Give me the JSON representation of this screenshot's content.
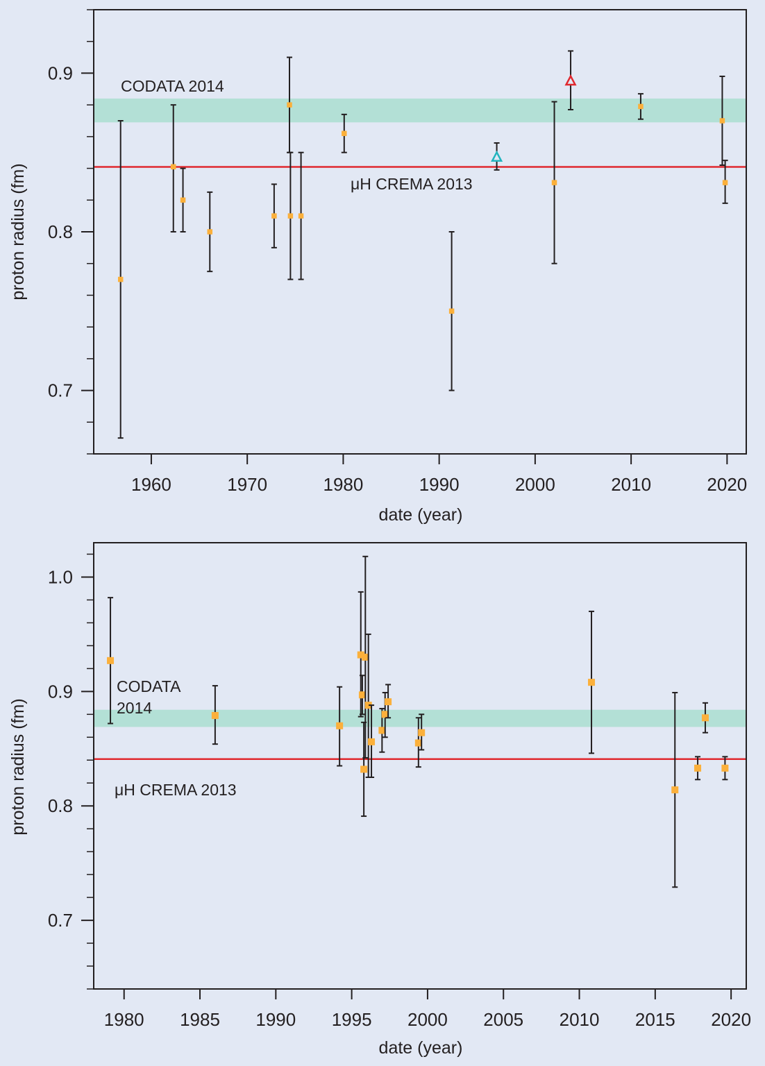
{
  "colors": {
    "background": "#e2e8f4",
    "axis": "#231f20",
    "codata_band": "#b3e0d6",
    "crema_line": "#e0282e",
    "marker": "#fbb03b",
    "errorbar": "#231f20",
    "triangle_cyan": "#22b5bf",
    "triangle_red": "#e0282e"
  },
  "chart_data": [
    {
      "type": "scatter",
      "xlabel": "date (year)",
      "ylabel": "proton radius (fm)",
      "xlim": [
        1954,
        2022
      ],
      "ylim": [
        0.66,
        0.94
      ],
      "x_ticks": [
        1960,
        1970,
        1980,
        1990,
        2000,
        2010,
        2020
      ],
      "x_tick_labels": [
        "1960",
        "1970",
        "1980",
        "1990",
        "2000",
        "2010",
        "2020"
      ],
      "y_ticks": [
        0.7,
        0.8,
        0.9
      ],
      "y_tick_labels": [
        "0.7",
        "0.8",
        "0.9"
      ],
      "y_minor_step": 0.02,
      "grid": false,
      "codata_band": {
        "label": "CODATA 2014",
        "y": [
          0.869,
          0.884
        ]
      },
      "crema_line": {
        "label": "μH CREMA 2013",
        "y": 0.8409
      },
      "series": [
        {
          "marker": "square",
          "points": [
            {
              "x": 1956.8,
              "y": 0.77,
              "ylo": 0.67,
              "yhi": 0.87
            },
            {
              "x": 1962.3,
              "y": 0.841,
              "ylo": 0.8,
              "yhi": 0.88
            },
            {
              "x": 1963.3,
              "y": 0.82,
              "ylo": 0.8,
              "yhi": 0.84
            },
            {
              "x": 1966.1,
              "y": 0.8,
              "ylo": 0.775,
              "yhi": 0.825
            },
            {
              "x": 1972.8,
              "y": 0.81,
              "ylo": 0.79,
              "yhi": 0.83
            },
            {
              "x": 1974.4,
              "y": 0.88,
              "ylo": 0.85,
              "yhi": 0.91
            },
            {
              "x": 1974.5,
              "y": 0.81,
              "ylo": 0.77,
              "yhi": 0.85
            },
            {
              "x": 1975.6,
              "y": 0.81,
              "ylo": 0.77,
              "yhi": 0.85
            },
            {
              "x": 1980.1,
              "y": 0.862,
              "ylo": 0.85,
              "yhi": 0.874
            },
            {
              "x": 1991.3,
              "y": 0.75,
              "ylo": 0.7,
              "yhi": 0.8
            },
            {
              "x": 2002.0,
              "y": 0.831,
              "ylo": 0.78,
              "yhi": 0.882
            },
            {
              "x": 2011.0,
              "y": 0.879,
              "ylo": 0.871,
              "yhi": 0.887
            },
            {
              "x": 2019.5,
              "y": 0.87,
              "ylo": 0.842,
              "yhi": 0.898
            },
            {
              "x": 2019.8,
              "y": 0.831,
              "ylo": 0.818,
              "yhi": 0.845
            }
          ]
        },
        {
          "marker": "triangle-cyan",
          "points": [
            {
              "x": 1996.0,
              "y": 0.847,
              "ylo": 0.839,
              "yhi": 0.856
            }
          ]
        },
        {
          "marker": "triangle-red",
          "points": [
            {
              "x": 2003.7,
              "y": 0.895,
              "ylo": 0.877,
              "yhi": 0.914
            }
          ]
        }
      ]
    },
    {
      "type": "scatter",
      "xlabel": "date (year)",
      "ylabel": "proton radius (fm)",
      "xlim": [
        1978,
        2021
      ],
      "ylim": [
        0.64,
        1.03
      ],
      "x_ticks": [
        1980,
        1985,
        1990,
        1995,
        2000,
        2005,
        2010,
        2015,
        2020
      ],
      "x_tick_labels": [
        "1980",
        "1985",
        "1990",
        "1995",
        "2000",
        "2005",
        "2010",
        "2015",
        "2020"
      ],
      "y_ticks": [
        0.7,
        0.8,
        0.9,
        1.0
      ],
      "y_tick_labels": [
        "0.7",
        "0.8",
        "0.9",
        "1.0"
      ],
      "y_minor_step": 0.02,
      "grid": false,
      "codata_band": {
        "label": "CODATA 2014",
        "label_lines": [
          "CODATA",
          "2014"
        ],
        "y": [
          0.869,
          0.884
        ]
      },
      "crema_line": {
        "label": "μH CREMA 2013",
        "y": 0.8409
      },
      "series": [
        {
          "marker": "square",
          "points": [
            {
              "x": 1979.1,
              "y": 0.927,
              "ylo": 0.872,
              "yhi": 0.982
            },
            {
              "x": 1986.0,
              "y": 0.879,
              "ylo": 0.854,
              "yhi": 0.905
            },
            {
              "x": 1994.2,
              "y": 0.87,
              "ylo": 0.835,
              "yhi": 0.904
            },
            {
              "x": 1995.6,
              "y": 0.932,
              "ylo": 0.878,
              "yhi": 0.987
            },
            {
              "x": 1995.7,
              "y": 0.897,
              "ylo": 0.88,
              "yhi": 0.914
            },
            {
              "x": 1995.8,
              "y": 0.832,
              "ylo": 0.791,
              "yhi": 0.873
            },
            {
              "x": 1995.9,
              "y": 0.93,
              "ylo": 0.842,
              "yhi": 1.018
            },
            {
              "x": 1996.1,
              "y": 0.888,
              "ylo": 0.825,
              "yhi": 0.95
            },
            {
              "x": 1996.3,
              "y": 0.856,
              "ylo": 0.825,
              "yhi": 0.888
            },
            {
              "x": 1997.0,
              "y": 0.866,
              "ylo": 0.847,
              "yhi": 0.885
            },
            {
              "x": 1997.2,
              "y": 0.88,
              "ylo": 0.86,
              "yhi": 0.899
            },
            {
              "x": 1997.4,
              "y": 0.891,
              "ylo": 0.877,
              "yhi": 0.906
            },
            {
              "x": 1999.4,
              "y": 0.855,
              "ylo": 0.834,
              "yhi": 0.877
            },
            {
              "x": 1999.6,
              "y": 0.864,
              "ylo": 0.849,
              "yhi": 0.88
            },
            {
              "x": 2010.8,
              "y": 0.908,
              "ylo": 0.846,
              "yhi": 0.97
            },
            {
              "x": 2016.3,
              "y": 0.814,
              "ylo": 0.729,
              "yhi": 0.899
            },
            {
              "x": 2017.8,
              "y": 0.833,
              "ylo": 0.823,
              "yhi": 0.843
            },
            {
              "x": 2018.3,
              "y": 0.877,
              "ylo": 0.864,
              "yhi": 0.89
            },
            {
              "x": 2019.6,
              "y": 0.833,
              "ylo": 0.823,
              "yhi": 0.843
            }
          ]
        }
      ]
    }
  ]
}
